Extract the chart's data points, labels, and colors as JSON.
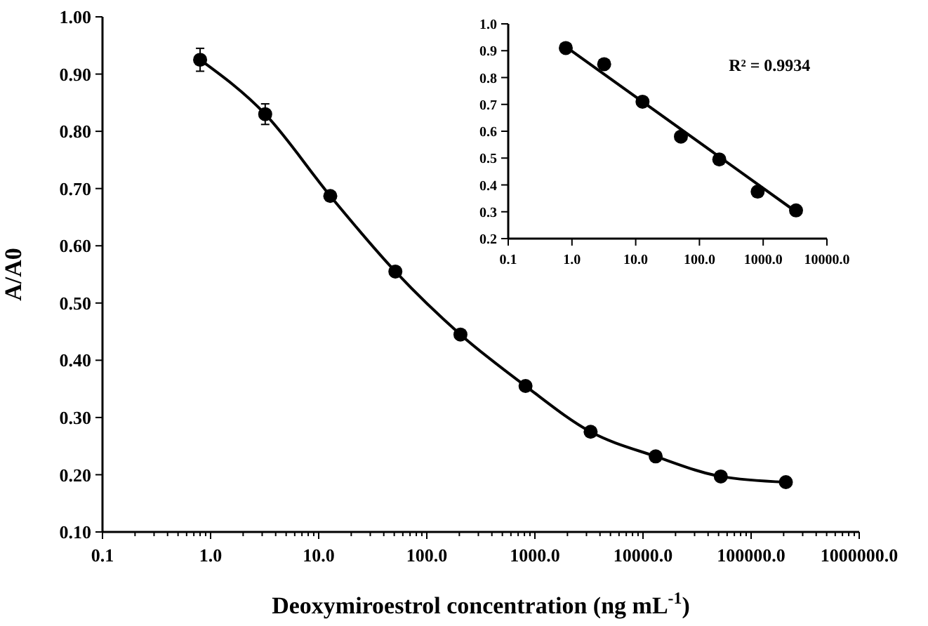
{
  "chart_data": [
    {
      "type": "line",
      "xlabel": "Deoxymiroestrol concentration (ng mL$^{-1}$)",
      "ylabel": "A/A0",
      "log": "x",
      "marker": "circle",
      "line_style": "solid",
      "color": "#000000",
      "x": [
        0.8,
        3.2,
        12.8,
        51.2,
        204.8,
        819.2,
        3276.8,
        13107.2,
        52428.8,
        209715.2
      ],
      "values": [
        0.925,
        0.83,
        0.687,
        0.555,
        0.445,
        0.355,
        0.275,
        0.232,
        0.197,
        0.187
      ],
      "errors": [
        0.02,
        0.018,
        0.006,
        0.006,
        0.005,
        0.005,
        0.005,
        0.008,
        0.005,
        0.005
      ],
      "xlim": [
        0.1,
        1000000
      ],
      "ylim": [
        0.1,
        1.0
      ],
      "xticks": [
        {
          "value": 0.1,
          "label": "0.1"
        },
        {
          "value": 0.2,
          "label": null
        },
        {
          "value": 0.3,
          "label": null
        },
        {
          "value": 0.4,
          "label": null
        },
        {
          "value": 0.5,
          "label": null
        },
        {
          "value": 0.6,
          "label": null
        },
        {
          "value": 0.7,
          "label": null
        },
        {
          "value": 0.8,
          "label": null
        },
        {
          "value": 0.9,
          "label": null
        },
        {
          "value": 1,
          "label": "1.0"
        },
        {
          "value": 2,
          "label": null
        },
        {
          "value": 3,
          "label": null
        },
        {
          "value": 4,
          "label": null
        },
        {
          "value": 5,
          "label": null
        },
        {
          "value": 6,
          "label": null
        },
        {
          "value": 7,
          "label": null
        },
        {
          "value": 8,
          "label": null
        },
        {
          "value": 9,
          "label": null
        },
        {
          "value": 10,
          "label": "10.0"
        },
        {
          "value": 20,
          "label": null
        },
        {
          "value": 30,
          "label": null
        },
        {
          "value": 40,
          "label": null
        },
        {
          "value": 50,
          "label": null
        },
        {
          "value": 60,
          "label": null
        },
        {
          "value": 70,
          "label": null
        },
        {
          "value": 80,
          "label": null
        },
        {
          "value": 90,
          "label": null
        },
        {
          "value": 100,
          "label": "100.0"
        },
        {
          "value": 200,
          "label": null
        },
        {
          "value": 300,
          "label": null
        },
        {
          "value": 400,
          "label": null
        },
        {
          "value": 500,
          "label": null
        },
        {
          "value": 600,
          "label": null
        },
        {
          "value": 700,
          "label": null
        },
        {
          "value": 800,
          "label": null
        },
        {
          "value": 900,
          "label": null
        },
        {
          "value": 1000,
          "label": "1000.0"
        },
        {
          "value": 2000,
          "label": null
        },
        {
          "value": 3000,
          "label": null
        },
        {
          "value": 4000,
          "label": null
        },
        {
          "value": 5000,
          "label": null
        },
        {
          "value": 6000,
          "label": null
        },
        {
          "value": 7000,
          "label": null
        },
        {
          "value": 8000,
          "label": null
        },
        {
          "value": 9000,
          "label": null
        },
        {
          "value": 10000,
          "label": "10000.0"
        },
        {
          "value": 20000,
          "label": null
        },
        {
          "value": 30000,
          "label": null
        },
        {
          "value": 40000,
          "label": null
        },
        {
          "value": 50000,
          "label": null
        },
        {
          "value": 60000,
          "label": null
        },
        {
          "value": 70000,
          "label": null
        },
        {
          "value": 80000,
          "label": null
        },
        {
          "value": 90000,
          "label": null
        },
        {
          "value": 100000,
          "label": "100000.0"
        },
        {
          "value": 200000,
          "label": null
        },
        {
          "value": 300000,
          "label": null
        },
        {
          "value": 400000,
          "label": null
        },
        {
          "value": 500000,
          "label": null
        },
        {
          "value": 600000,
          "label": null
        },
        {
          "value": 700000,
          "label": null
        },
        {
          "value": 800000,
          "label": null
        },
        {
          "value": 900000,
          "label": null
        },
        {
          "value": 1000000,
          "label": "1000000.0"
        }
      ],
      "yticks": [
        {
          "value": 0.1,
          "label": "0.10"
        },
        {
          "value": 0.2,
          "label": "0.20"
        },
        {
          "value": 0.3,
          "label": "0.30"
        },
        {
          "value": 0.4,
          "label": "0.40"
        },
        {
          "value": 0.5,
          "label": "0.50"
        },
        {
          "value": 0.6,
          "label": "0.60"
        },
        {
          "value": 0.7,
          "label": "0.70"
        },
        {
          "value": 0.8,
          "label": "0.80"
        },
        {
          "value": 0.9,
          "label": "0.90"
        },
        {
          "value": 1.0,
          "label": "1.00"
        }
      ]
    },
    {
      "type": "scatter",
      "log": "x",
      "annotations": [
        "R² = 0.9934"
      ],
      "series": [
        {
          "color": "#000000",
          "marker": "circle",
          "x": [
            0.8,
            3.2,
            12.8,
            51.2,
            204.8,
            819.2,
            3276.8
          ],
          "values": [
            0.91,
            0.85,
            0.71,
            0.58,
            0.495,
            0.375,
            0.305
          ]
        },
        {
          "type": "line",
          "color": "#000000",
          "marker": "none",
          "x": [
            0.8,
            3276.8
          ],
          "values": [
            0.915,
            0.3
          ]
        }
      ],
      "xlim": [
        0.1,
        10000
      ],
      "ylim": [
        0.2,
        1.0
      ],
      "xticks": [
        {
          "value": 0.1,
          "label": "0.1"
        },
        {
          "value": 1,
          "label": "1.0"
        },
        {
          "value": 10,
          "label": "10.0"
        },
        {
          "value": 100,
          "label": "100.0"
        },
        {
          "value": 1000,
          "label": "1000.0"
        },
        {
          "value": 10000,
          "label": "10000.0"
        }
      ],
      "yticks": [
        {
          "value": 0.2,
          "label": "0.2"
        },
        {
          "value": 0.3,
          "label": "0.3"
        },
        {
          "value": 0.4,
          "label": "0.4"
        },
        {
          "value": 0.5,
          "label": "0.5"
        },
        {
          "value": 0.6,
          "label": "0.6"
        },
        {
          "value": 0.7,
          "label": "0.7"
        },
        {
          "value": 0.8,
          "label": "0.8"
        },
        {
          "value": 0.9,
          "label": "0.9"
        },
        {
          "value": 1.0,
          "label": "1.0"
        }
      ]
    }
  ]
}
